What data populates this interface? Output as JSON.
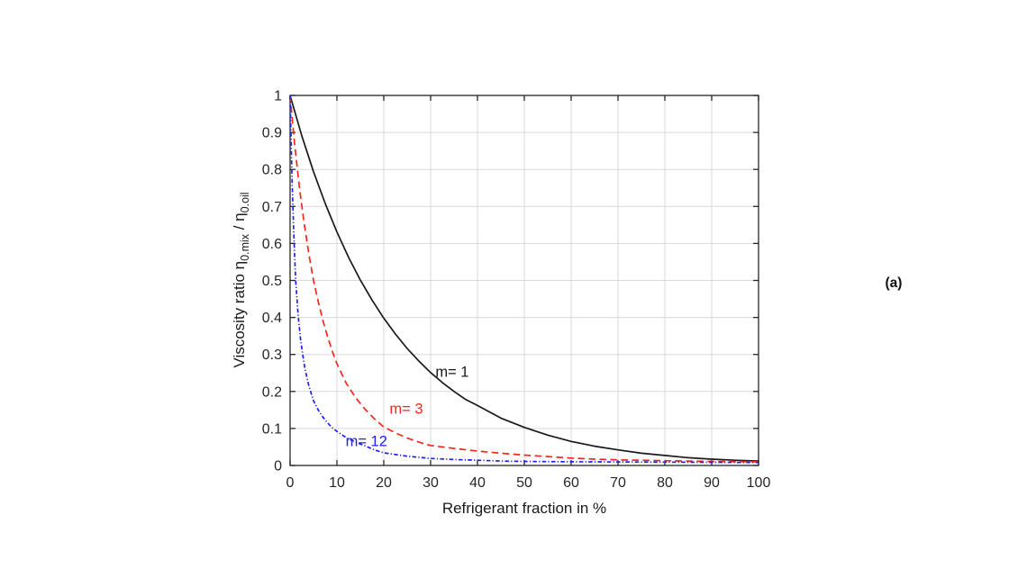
{
  "figure_label": "(a)",
  "colors": {
    "background": "#ffffff",
    "axis": "#262626",
    "grid": "#d9d9d9",
    "tick_text": "#262626",
    "series_m1": "#1a1a1a",
    "series_m3": "#f8271c",
    "series_m12": "#2020f2"
  },
  "chart_data": {
    "type": "line",
    "title": "",
    "xlabel": "Refrigerant fraction in %",
    "ylabel_segments": [
      {
        "text": "Viscosity ratio η",
        "sub": false
      },
      {
        "text": "0.mix",
        "sub": true
      },
      {
        "text": " / η",
        "sub": false
      },
      {
        "text": "0.oil",
        "sub": true
      }
    ],
    "xlim": [
      0,
      100
    ],
    "ylim": [
      0,
      1
    ],
    "xticks": [
      0,
      10,
      20,
      30,
      40,
      50,
      60,
      70,
      80,
      90,
      100
    ],
    "xtick_labels": [
      "0",
      "10",
      "20",
      "30",
      "40",
      "50",
      "60",
      "70",
      "80",
      "90",
      "100"
    ],
    "yticks": [
      0,
      0.1,
      0.2,
      0.3,
      0.4,
      0.5,
      0.6,
      0.7,
      0.8,
      0.9,
      1
    ],
    "ytick_labels": [
      "0",
      "0.1",
      "0.2",
      "0.3",
      "0.4",
      "0.5",
      "0.6",
      "0.7",
      "0.8",
      "0.9",
      "1"
    ],
    "grid": true,
    "legend_position": "inline-labels",
    "series": [
      {
        "name": "m= 1",
        "color": "#1a1a1a",
        "style": "solid",
        "label_pos": [
          34.6,
          0.253
        ],
        "points": [
          [
            0,
            1
          ],
          [
            2.5,
            0.891
          ],
          [
            5,
            0.794
          ],
          [
            7.5,
            0.708
          ],
          [
            10,
            0.631
          ],
          [
            12.5,
            0.562
          ],
          [
            15,
            0.501
          ],
          [
            17.5,
            0.447
          ],
          [
            20,
            0.398
          ],
          [
            22.5,
            0.355
          ],
          [
            25,
            0.316
          ],
          [
            27.5,
            0.282
          ],
          [
            30,
            0.251
          ],
          [
            32.5,
            0.224
          ],
          [
            35,
            0.2
          ],
          [
            37.5,
            0.178
          ],
          [
            40,
            0.162
          ],
          [
            45,
            0.128
          ],
          [
            50,
            0.103
          ],
          [
            55,
            0.082
          ],
          [
            60,
            0.065
          ],
          [
            65,
            0.052
          ],
          [
            70,
            0.042
          ],
          [
            75,
            0.033
          ],
          [
            80,
            0.027
          ],
          [
            85,
            0.021
          ],
          [
            90,
            0.017
          ],
          [
            95,
            0.014
          ],
          [
            100,
            0.012
          ]
        ]
      },
      {
        "name": "m= 3",
        "color": "#f8271c",
        "style": "dashed",
        "label_pos": [
          24.8,
          0.153
        ],
        "points": [
          [
            0,
            1
          ],
          [
            1,
            0.865
          ],
          [
            2,
            0.75
          ],
          [
            3,
            0.655
          ],
          [
            4,
            0.572
          ],
          [
            5,
            0.5
          ],
          [
            6,
            0.443
          ],
          [
            7,
            0.392
          ],
          [
            8,
            0.348
          ],
          [
            9,
            0.309
          ],
          [
            10,
            0.275
          ],
          [
            12,
            0.222
          ],
          [
            14,
            0.183
          ],
          [
            16,
            0.152
          ],
          [
            18,
            0.126
          ],
          [
            20,
            0.104
          ],
          [
            22.5,
            0.088
          ],
          [
            25,
            0.074
          ],
          [
            27.5,
            0.063
          ],
          [
            30,
            0.054
          ],
          [
            35,
            0.046
          ],
          [
            40,
            0.039
          ],
          [
            45,
            0.033
          ],
          [
            50,
            0.028
          ],
          [
            55,
            0.024
          ],
          [
            60,
            0.02
          ],
          [
            65,
            0.017
          ],
          [
            70,
            0.015
          ],
          [
            75,
            0.014
          ],
          [
            80,
            0.013
          ],
          [
            85,
            0.012
          ],
          [
            90,
            0.011
          ],
          [
            95,
            0.0105
          ],
          [
            100,
            0.01
          ]
        ]
      },
      {
        "name": "m= 12",
        "color": "#2020f2",
        "style": "dashdot",
        "label_pos": [
          16.3,
          0.066
        ],
        "points": [
          [
            0,
            1
          ],
          [
            0.4,
            0.78
          ],
          [
            0.8,
            0.62
          ],
          [
            1.2,
            0.5
          ],
          [
            1.7,
            0.41
          ],
          [
            2.2,
            0.345
          ],
          [
            2.7,
            0.3
          ],
          [
            3.2,
            0.26
          ],
          [
            4,
            0.215
          ],
          [
            5,
            0.175
          ],
          [
            6,
            0.15
          ],
          [
            7,
            0.131
          ],
          [
            8,
            0.115
          ],
          [
            9,
            0.102
          ],
          [
            10,
            0.092
          ],
          [
            12,
            0.075
          ],
          [
            14,
            0.063
          ],
          [
            16,
            0.053
          ],
          [
            18,
            0.042
          ],
          [
            20,
            0.034
          ],
          [
            25,
            0.025
          ],
          [
            30,
            0.019
          ],
          [
            35,
            0.016
          ],
          [
            40,
            0.014
          ],
          [
            45,
            0.012
          ],
          [
            50,
            0.011
          ],
          [
            60,
            0.01
          ],
          [
            70,
            0.0095
          ],
          [
            80,
            0.009
          ],
          [
            90,
            0.0085
          ],
          [
            100,
            0.008
          ]
        ]
      }
    ]
  }
}
